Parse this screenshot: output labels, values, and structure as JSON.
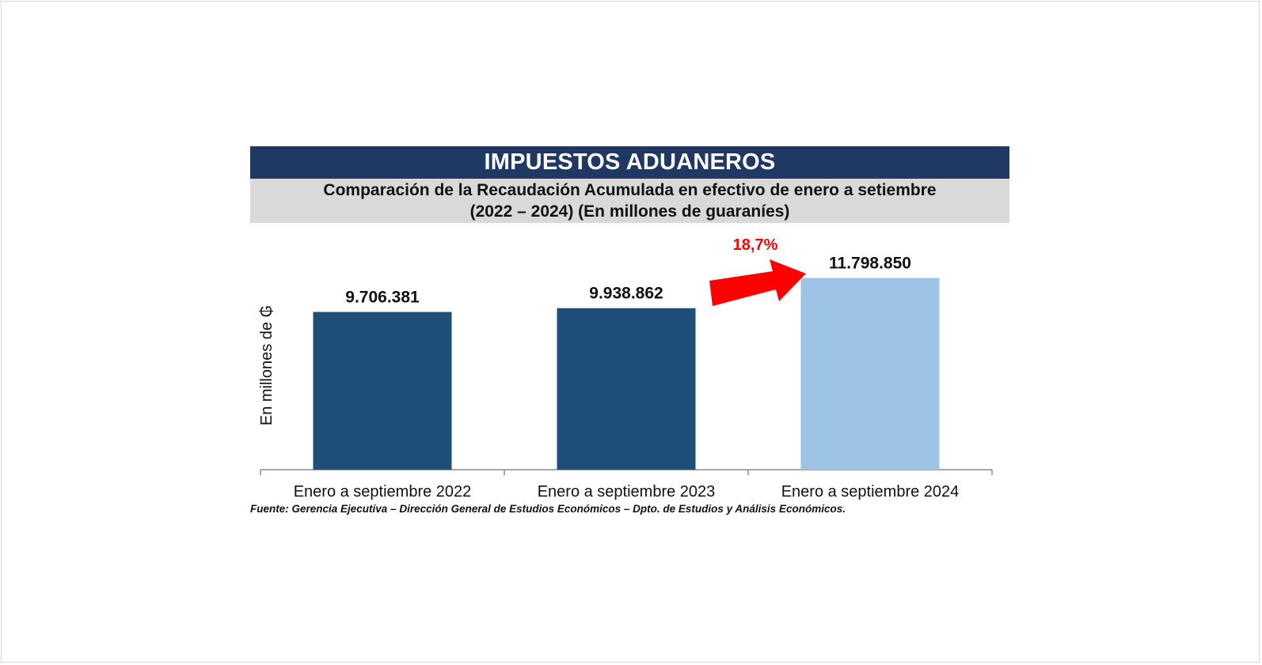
{
  "header": {
    "title": "IMPUESTOS ADUANEROS",
    "subtitle_line1": "Comparación de la Recaudación Acumulada en efectivo de enero a setiembre",
    "subtitle_line2": "(2022 – 2024) (En millones de guaraníes)"
  },
  "chart_data": {
    "type": "bar",
    "categories": [
      "Enero a septiembre 2022",
      "Enero a septiembre 2023",
      "Enero a septiembre 2024"
    ],
    "values": [
      9706381,
      9938862,
      11798850
    ],
    "data_labels": [
      "9.706.381",
      "9.938.862",
      "11.798.850"
    ],
    "ylabel": "En millones de ₲",
    "ylim": [
      0,
      12500000
    ],
    "grid": false,
    "bar_colors": [
      "#1f4e79",
      "#1f4e79",
      "#9dc3e6"
    ],
    "annotation": {
      "text": "18,7%",
      "arrow_color": "#ff0000",
      "from_category": 1,
      "to_category": 2
    }
  },
  "footer": {
    "source": "Fuente: Gerencia Ejecutiva – Dirección General de Estudios Económicos – Dpto. de Estudios y Análisis Económicos."
  }
}
